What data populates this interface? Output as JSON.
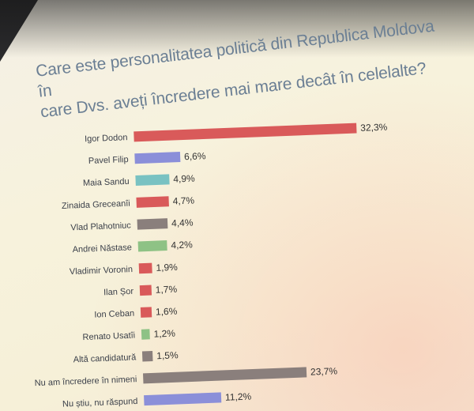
{
  "title_lines": [
    "Care este personalitatea politică din Republica Moldova în",
    "care Dvs. aveți încredere mai mare decât în celelalte?"
  ],
  "chart_data": {
    "type": "bar",
    "orientation": "horizontal",
    "title": "Care este personalitatea politică din Republica Moldova în care Dvs. aveți încredere mai mare decât în celelalte?",
    "categories": [
      "Igor Dodon",
      "Pavel Filip",
      "Maia Sandu",
      "Zinaida Greceanîi",
      "Vlad Plahotniuc",
      "Andrei Năstase",
      "Vladimir Voronin",
      "Ilan Șor",
      "Ion Ceban",
      "Renato Usatîi",
      "Altă candidatură",
      "Nu am încredere în nimeni",
      "Nu știu, nu răspund"
    ],
    "values": [
      32.3,
      6.6,
      4.9,
      4.7,
      4.4,
      4.2,
      1.9,
      1.7,
      1.6,
      1.2,
      1.5,
      23.7,
      11.2
    ],
    "value_labels": [
      "32,3%",
      "6,6%",
      "4,9%",
      "4,7%",
      "4,4%",
      "4,2%",
      "1,9%",
      "1,7%",
      "1,6%",
      "1,2%",
      "1,5%",
      "23,7%",
      "11,2%"
    ],
    "colors": [
      "#d95a5a",
      "#8b8fd9",
      "#79c2c2",
      "#d95a5a",
      "#8a7f7c",
      "#8ec285",
      "#d95a5a",
      "#d95a5a",
      "#d95a5a",
      "#8ec285",
      "#8a7f7c",
      "#8a7f7c",
      "#8b8fd9"
    ],
    "xlim": [
      0,
      32.3
    ],
    "grid": false,
    "legend": "none"
  }
}
